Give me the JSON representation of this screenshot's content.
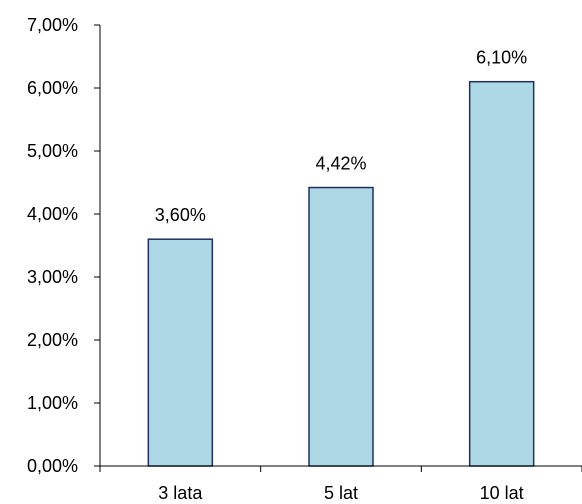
{
  "chart_data": {
    "type": "bar",
    "categories": [
      "3 lata",
      "5 lat",
      "10 lat"
    ],
    "values": [
      3.6,
      4.42,
      6.1
    ],
    "data_labels": [
      "3,60%",
      "4,42%",
      "6,10%"
    ],
    "ylim": [
      0,
      7
    ],
    "yticks": [
      0,
      1,
      2,
      3,
      4,
      5,
      6,
      7
    ],
    "ytick_labels": [
      "0,00%",
      "1,00%",
      "2,00%",
      "3,00%",
      "4,00%",
      "5,00%",
      "6,00%",
      "7,00%"
    ],
    "grid": false,
    "legend": "none",
    "title": "",
    "xlabel": "",
    "ylabel": "",
    "colors": {
      "bar_fill": "#add8e6",
      "bar_stroke": "#1f2f5f",
      "axis": "#000000"
    }
  }
}
